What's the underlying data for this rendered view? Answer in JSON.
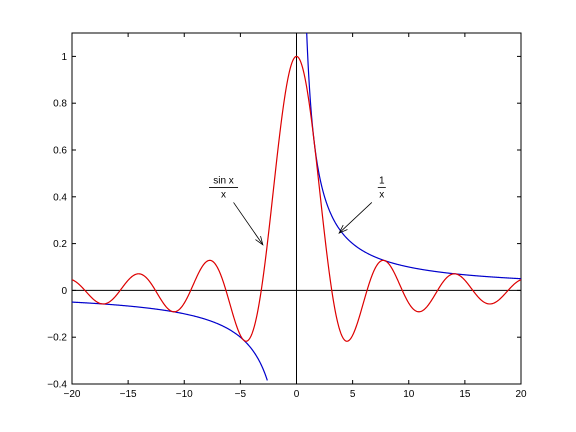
{
  "chart_data": {
    "type": "line",
    "title": "",
    "xlabel": "",
    "ylabel": "",
    "xlim": [
      -20,
      20
    ],
    "ylim": [
      -0.4,
      1.1
    ],
    "xticks": [
      -20,
      -15,
      -10,
      -5,
      0,
      5,
      10,
      15,
      20
    ],
    "xtick_labels": [
      "−20",
      "−15",
      "−10",
      "−5",
      "0",
      "5",
      "10",
      "15",
      "20"
    ],
    "yticks": [
      -0.4,
      -0.2,
      0,
      0.2,
      0.4,
      0.6,
      0.8,
      1.0
    ],
    "ytick_labels": [
      "−0.4",
      "−0.2",
      "0",
      "0.2",
      "0.4",
      "0.6",
      "0.8",
      "1"
    ],
    "grid": false,
    "legend": "none",
    "axis_lines": {
      "x": 0,
      "y": 0
    },
    "series": [
      {
        "function": "1/x",
        "color": "#0000cc",
        "x": [
          -20,
          -16,
          -12,
          -10,
          -8,
          -6,
          -5,
          -4,
          -3.5,
          -3,
          -2.7,
          0.9,
          1,
          1.25,
          1.5,
          2,
          2.5,
          3,
          3.5,
          4,
          5,
          6,
          8,
          10,
          12,
          16,
          20
        ],
        "y": [
          -0.05,
          -0.0625,
          -0.0833,
          -0.1,
          -0.125,
          -0.1667,
          -0.2,
          -0.25,
          -0.2857,
          -0.3333,
          -0.3704,
          1.1111,
          1.0,
          0.8,
          0.6667,
          0.5,
          0.4,
          0.3333,
          0.2857,
          0.25,
          0.2,
          0.1667,
          0.125,
          0.1,
          0.0833,
          0.0625,
          0.05
        ]
      },
      {
        "function": "sin x / x",
        "color": "#dd0000",
        "x": [
          -20,
          -17.2,
          -14.07,
          -10.9,
          -7.73,
          -4.49,
          -3,
          -2,
          -1,
          0,
          1,
          2,
          3,
          4.49,
          7.73,
          10.9,
          14.07,
          17.2,
          20
        ],
        "y": [
          0.0456,
          -0.0576,
          0.0709,
          -0.0913,
          0.1284,
          -0.2172,
          0.047,
          0.4546,
          0.8415,
          1.0,
          0.8415,
          0.4546,
          0.047,
          -0.2172,
          0.1284,
          -0.0913,
          0.0709,
          -0.0576,
          0.0456
        ]
      }
    ],
    "annotations": [
      {
        "numerator": "sin x",
        "denominator": "x",
        "text_at": [
          -6.5,
          0.44
        ],
        "arrow_to": [
          -3,
          0.195
        ]
      },
      {
        "numerator": "1",
        "denominator": "x",
        "text_at": [
          7.6,
          0.44
        ],
        "arrow_to": [
          3.8,
          0.245
        ]
      }
    ]
  }
}
